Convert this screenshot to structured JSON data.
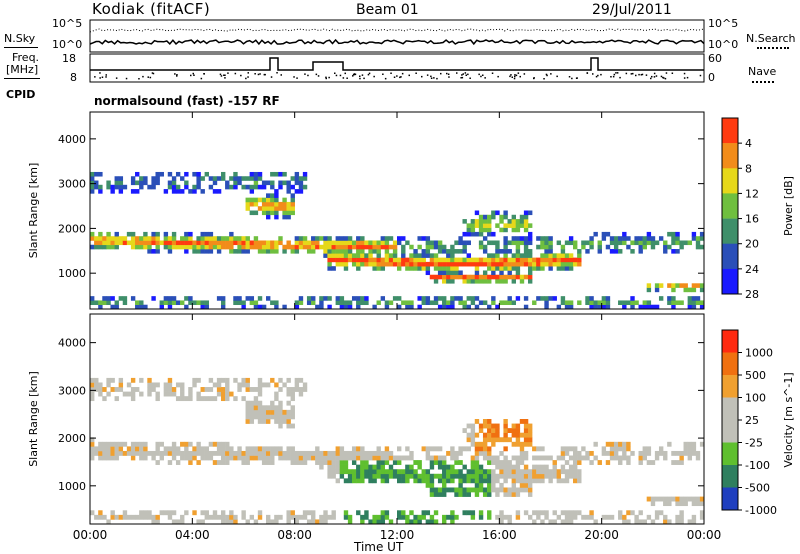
{
  "header": {
    "station": "Kodiak (fitACF)",
    "beam": "Beam 01",
    "date": "29/Jul/2011"
  },
  "noise_panel": {
    "left_label": "N.Sky",
    "right_label": "N.Search",
    "y_ticks_left": [
      "10^5",
      "10^0"
    ],
    "y_ticks_right": [
      "10^5",
      "10^0"
    ]
  },
  "freq_panel": {
    "left_label_top": "Freq.",
    "left_label_bottom": "[MHz]",
    "right_label": "Nave",
    "y_ticks_left": [
      "18",
      "8"
    ],
    "y_ticks_right": [
      "60",
      "0"
    ],
    "cpid_label": "CPID",
    "mode_text": "normalsound (fast) -157 RF"
  },
  "x_axis": {
    "ticks": [
      "00:00",
      "04:00",
      "08:00",
      "12:00",
      "16:00",
      "20:00",
      "00:00"
    ],
    "label": "Time UT"
  },
  "chart_data": [
    {
      "type": "heatmap",
      "panel": "power",
      "ylabel": "Slant Range [km]",
      "y_ticks": [
        "1000",
        "2000",
        "3000",
        "4000"
      ],
      "ylim": [
        200,
        4600
      ],
      "colorbar_label": "Power [dB]",
      "colorbar_ticks": [
        "4",
        "8",
        "12",
        "16",
        "20",
        "24",
        "28"
      ],
      "colors": [
        "#1a1aff",
        "#2a4fb8",
        "#3f8f6a",
        "#6fbf3f",
        "#e6d81a",
        "#f28c1a",
        "#ff3a10"
      ]
    },
    {
      "type": "heatmap",
      "panel": "velocity",
      "ylabel": "Slant Range [km]",
      "y_ticks": [
        "1000",
        "2000",
        "3000",
        "4000"
      ],
      "ylim": [
        200,
        4600
      ],
      "colorbar_label": "Velocity [m s^-1]",
      "colorbar_ticks": [
        "1000",
        "500",
        "100",
        "25",
        "-25",
        "-100",
        "-500",
        "-1000"
      ],
      "colors": [
        "#1f3fbf",
        "#2f7f5f",
        "#5fbf2f",
        "#c0c0b8",
        "#c0c0b8",
        "#f0a030",
        "#f07010",
        "#ff2a10"
      ]
    }
  ]
}
